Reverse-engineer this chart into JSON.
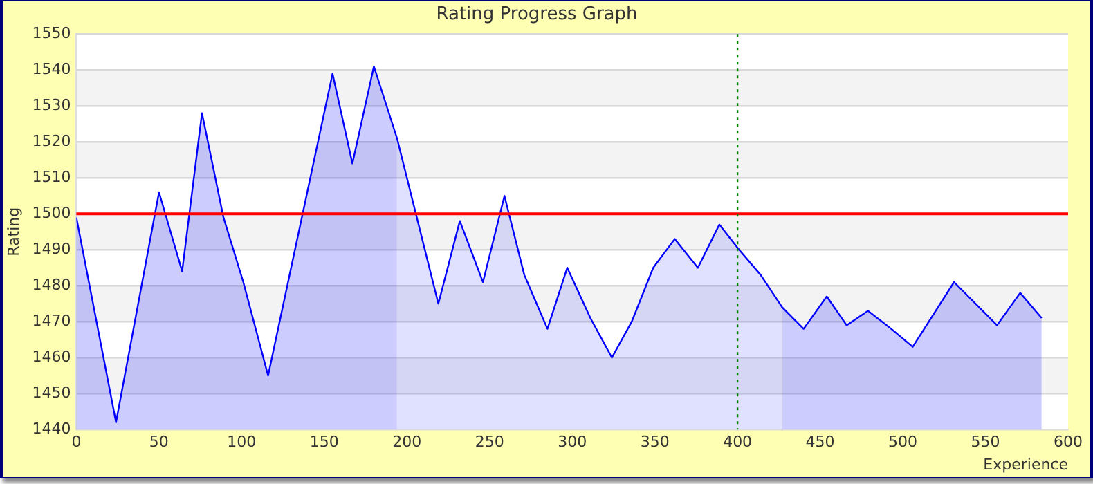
{
  "chart_data": {
    "type": "area",
    "title": "Rating Progress Graph",
    "xlabel": "Experience",
    "ylabel": "Rating",
    "series": [
      {
        "color": "#0000ff",
        "x": [
          0,
          24,
          50,
          64,
          76,
          89,
          101,
          116,
          155,
          167,
          180,
          194
        ],
        "values": [
          1499,
          1442,
          1506,
          1484,
          1528,
          1499,
          1481,
          1455,
          1539,
          1514,
          1541,
          1521
        ]
      },
      {
        "color": "#0000ff",
        "x": [
          194,
          219,
          232,
          246,
          259,
          271,
          285,
          297,
          311,
          324,
          336,
          349,
          362,
          376,
          389,
          401,
          414,
          427
        ],
        "values": [
          1521,
          1475,
          1498,
          1481,
          1505,
          1483,
          1468,
          1485,
          1471,
          1460,
          1470,
          1485,
          1493,
          1485,
          1497,
          1490,
          1483,
          1474
        ]
      },
      {
        "color": "#0000ff",
        "x": [
          427,
          440,
          454,
          466,
          479,
          493,
          506,
          531,
          557,
          571,
          584
        ],
        "values": [
          1474,
          1468,
          1477,
          1469,
          1473,
          1468,
          1463,
          1481,
          1469,
          1478,
          1471
        ]
      }
    ],
    "xlim": [
      0,
      600
    ],
    "xticks": [
      0,
      50,
      100,
      150,
      200,
      250,
      300,
      350,
      400,
      450,
      500,
      550,
      600
    ],
    "ylim": [
      1440,
      1550
    ],
    "yticks": [
      1440,
      1450,
      1460,
      1470,
      1480,
      1490,
      1500,
      1510,
      1520,
      1530,
      1540,
      1550
    ],
    "grid": "y",
    "legend": false,
    "marker": "none",
    "line_style": "solid",
    "ref_lines": [
      {
        "axis": "y",
        "value": 1500,
        "color": "#ff0000",
        "line_style": "solid"
      },
      {
        "axis": "x",
        "value": 400,
        "color": "#008000",
        "line_style": "dotted"
      }
    ]
  }
}
